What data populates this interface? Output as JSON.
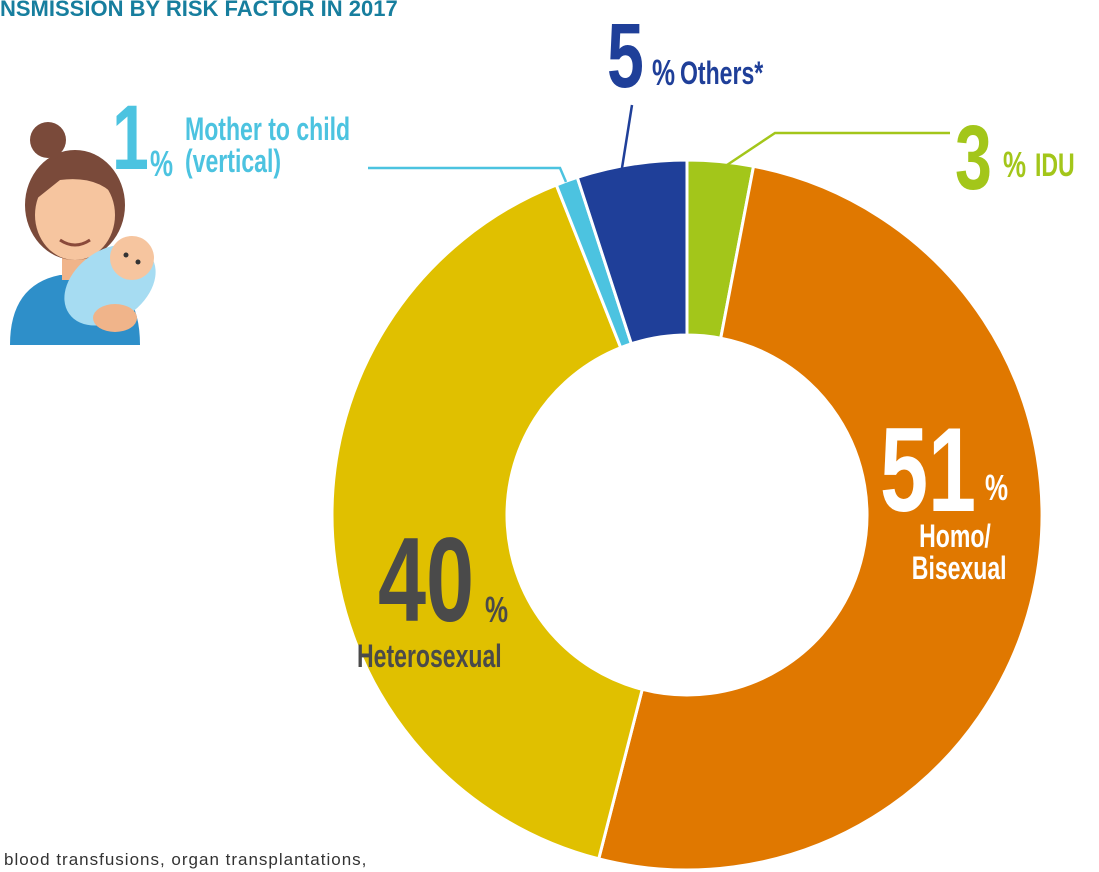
{
  "chart_data": {
    "type": "donut",
    "title": "NSMISSION BY RISK FACTOR IN 2017",
    "categories": [
      "IDU",
      "Homo/\nBisexual",
      "Heterosexual",
      "Mother to child\n(vertical)",
      "Others*"
    ],
    "values": [
      3,
      51,
      40,
      1,
      5
    ],
    "unit": "%",
    "colors": [
      "#a3c61a",
      "#e07800",
      "#e0c000",
      "#4cc3e0",
      "#1f3f99"
    ],
    "footnote": "blood transfusions, organ transplantations,"
  }
}
